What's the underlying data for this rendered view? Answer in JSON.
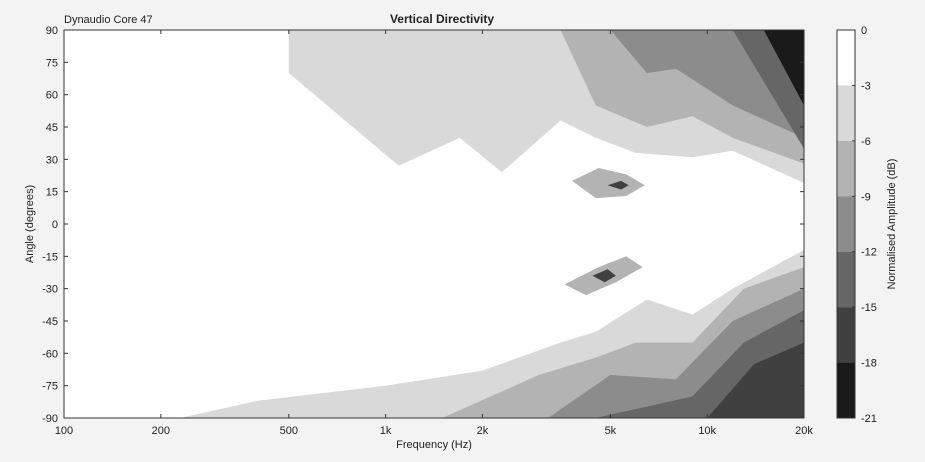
{
  "chart_data": {
    "type": "heatmap",
    "subtitle": "Dynaudio Core 47",
    "title": "Vertical Directivity",
    "xlabel": "Frequency (Hz)",
    "ylabel": "Angle (degrees)",
    "x_scale": "log",
    "xlim": [
      100,
      20000
    ],
    "ylim": [
      -90,
      90
    ],
    "x_ticks": [
      100,
      200,
      500,
      1000,
      2000,
      5000,
      10000,
      20000
    ],
    "x_tick_labels": [
      "100",
      "200",
      "500",
      "1k",
      "2k",
      "5k",
      "10k",
      "20k"
    ],
    "y_ticks": [
      90,
      75,
      60,
      45,
      30,
      15,
      0,
      -15,
      -30,
      -45,
      -60,
      -75,
      -90
    ],
    "y_tick_labels": [
      "90",
      "75",
      "60",
      "45",
      "30",
      "15",
      "0",
      "-15",
      "-30",
      "-45",
      "-60",
      "-75",
      "-90"
    ],
    "colorbar": {
      "label": "Normalised Amplitude (dB)",
      "range": [
        -21,
        0
      ],
      "tick_labels": [
        "0",
        "-3",
        "-6",
        "-9",
        "-12",
        "-15",
        "-18",
        "-21"
      ],
      "bands": [
        {
          "upper": 0,
          "color": "#ffffff"
        },
        {
          "upper": -3,
          "color": "#d9d9d9"
        },
        {
          "upper": -6,
          "color": "#b3b3b3"
        },
        {
          "upper": -9,
          "color": "#8c8c8c"
        },
        {
          "upper": -12,
          "color": "#666666"
        },
        {
          "upper": -15,
          "color": "#404040"
        },
        {
          "upper": -18,
          "color": "#1a1a1a"
        }
      ]
    },
    "contour_regions": [
      {
        "level": -3,
        "color": "#d9d9d9",
        "desc": "upper lobe light region",
        "freq": [
          500,
          500,
          1100,
          1700,
          2300,
          3500,
          4500,
          6000,
          9000,
          12000,
          20000,
          20000
        ],
        "angle": [
          90,
          70,
          27,
          40,
          24,
          48,
          40,
          33,
          31,
          34,
          19,
          90
        ]
      },
      {
        "level": -3,
        "color": "#d9d9d9",
        "desc": "lower lobe light region",
        "freq": [
          230,
          400,
          1000,
          2000,
          3500,
          4500,
          6500,
          9000,
          12000,
          20000,
          20000,
          230
        ],
        "angle": [
          -90,
          -82,
          -75,
          -68,
          -55,
          -50,
          -35,
          -42,
          -30,
          -12,
          -90,
          -90
        ]
      },
      {
        "level": -6,
        "color": "#b3b3b3",
        "desc": "upper -6 region",
        "freq": [
          3500,
          4500,
          6500,
          9000,
          12000,
          20000,
          20000,
          3500
        ],
        "angle": [
          90,
          55,
          45,
          50,
          40,
          28,
          90,
          90
        ]
      },
      {
        "level": -6,
        "color": "#b3b3b3",
        "desc": "lower -6 region",
        "freq": [
          1500,
          3000,
          4500,
          6000,
          9000,
          13000,
          20000,
          20000,
          1500
        ],
        "angle": [
          -90,
          -70,
          -62,
          -55,
          -55,
          -30,
          -20,
          -90,
          -90
        ]
      },
      {
        "level": -9,
        "color": "#8c8c8c",
        "desc": "upper -9 patch",
        "freq": [
          5000,
          6500,
          8000,
          12000,
          20000,
          20000,
          5000
        ],
        "angle": [
          90,
          70,
          72,
          55,
          40,
          90,
          90
        ]
      },
      {
        "level": -9,
        "color": "#8c8c8c",
        "desc": "lower -9 patch",
        "freq": [
          3200,
          5000,
          8000,
          12000,
          20000,
          20000,
          3200
        ],
        "angle": [
          -90,
          -70,
          -72,
          -45,
          -30,
          -90,
          -90
        ]
      },
      {
        "level": -12,
        "color": "#666666",
        "desc": "upper right edge",
        "freq": [
          12000,
          20000,
          20000,
          14000
        ],
        "angle": [
          90,
          35,
          90,
          90
        ]
      },
      {
        "level": -12,
        "color": "#666666",
        "desc": "lower right edge",
        "freq": [
          4500,
          9000,
          13000,
          20000,
          20000,
          4500
        ],
        "angle": [
          -90,
          -80,
          -55,
          -40,
          -90,
          -90
        ]
      },
      {
        "level": -15,
        "color": "#404040",
        "desc": "lower right darker",
        "freq": [
          10000,
          14000,
          20000,
          20000,
          10000
        ],
        "angle": [
          -90,
          -65,
          -55,
          -90,
          -90
        ]
      },
      {
        "level": -18,
        "color": "#1a1a1a",
        "desc": "upper right corner",
        "freq": [
          15000,
          20000,
          20000
        ],
        "angle": [
          90,
          55,
          90
        ]
      },
      {
        "level": -6,
        "color": "#b3b3b3",
        "desc": "upper on-axis notch",
        "freq": [
          3800,
          4600,
          5600,
          6400,
          5600,
          4500,
          3800
        ],
        "angle": [
          20,
          26,
          23,
          18,
          13,
          12,
          20
        ]
      },
      {
        "level": -15,
        "color": "#404040",
        "desc": "upper notch core",
        "freq": [
          4900,
          5400,
          5700,
          5400,
          4900
        ],
        "angle": [
          18,
          20,
          18,
          16,
          18
        ]
      },
      {
        "level": -6,
        "color": "#b3b3b3",
        "desc": "lower on-axis notch",
        "freq": [
          3600,
          4600,
          5600,
          6300,
          5200,
          4200,
          3600
        ],
        "angle": [
          -28,
          -20,
          -15,
          -20,
          -27,
          -33,
          -28
        ]
      },
      {
        "level": -15,
        "color": "#404040",
        "desc": "lower notch core",
        "freq": [
          4400,
          4900,
          5200,
          4800,
          4400
        ],
        "angle": [
          -24,
          -21,
          -24,
          -27,
          -24
        ]
      }
    ]
  }
}
